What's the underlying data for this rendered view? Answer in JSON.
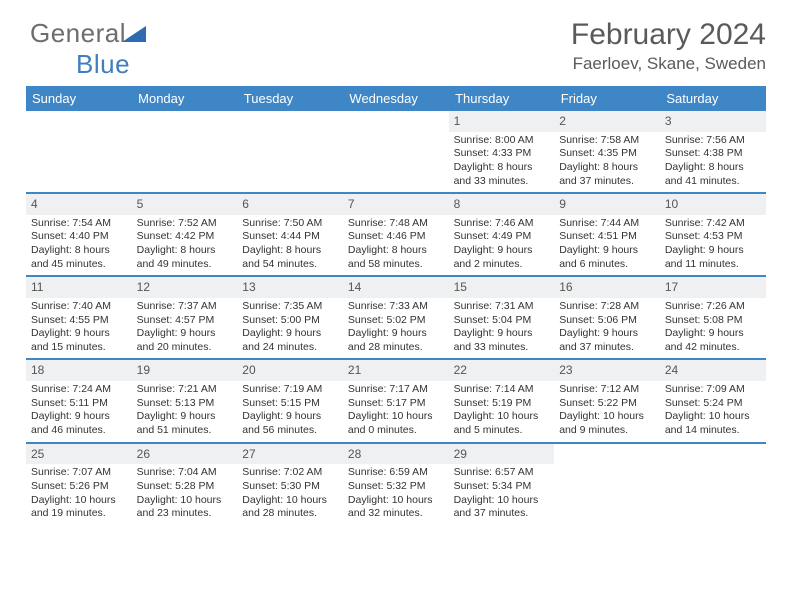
{
  "logo": {
    "part1": "General",
    "part2": "Blue"
  },
  "title": "February 2024",
  "subtitle": "Faerloev, Skane, Sweden",
  "colors": {
    "header_bg": "#3f86c7",
    "header_text": "#ffffff",
    "daynum_bg": "#eef0f1",
    "rule": "#3f86c7",
    "text": "#333333",
    "logo_grey": "#6d6d6d",
    "logo_blue": "#3f7fbf"
  },
  "font_sizes": {
    "title": 30,
    "subtitle": 17,
    "header": 13,
    "daynum": 12,
    "body": 10.5
  },
  "days_of_week": [
    "Sunday",
    "Monday",
    "Tuesday",
    "Wednesday",
    "Thursday",
    "Friday",
    "Saturday"
  ],
  "weeks": [
    [
      null,
      null,
      null,
      null,
      {
        "n": "1",
        "sr": "8:00 AM",
        "ss": "4:33 PM",
        "dl": "8 hours and 33 minutes."
      },
      {
        "n": "2",
        "sr": "7:58 AM",
        "ss": "4:35 PM",
        "dl": "8 hours and 37 minutes."
      },
      {
        "n": "3",
        "sr": "7:56 AM",
        "ss": "4:38 PM",
        "dl": "8 hours and 41 minutes."
      }
    ],
    [
      {
        "n": "4",
        "sr": "7:54 AM",
        "ss": "4:40 PM",
        "dl": "8 hours and 45 minutes."
      },
      {
        "n": "5",
        "sr": "7:52 AM",
        "ss": "4:42 PM",
        "dl": "8 hours and 49 minutes."
      },
      {
        "n": "6",
        "sr": "7:50 AM",
        "ss": "4:44 PM",
        "dl": "8 hours and 54 minutes."
      },
      {
        "n": "7",
        "sr": "7:48 AM",
        "ss": "4:46 PM",
        "dl": "8 hours and 58 minutes."
      },
      {
        "n": "8",
        "sr": "7:46 AM",
        "ss": "4:49 PM",
        "dl": "9 hours and 2 minutes."
      },
      {
        "n": "9",
        "sr": "7:44 AM",
        "ss": "4:51 PM",
        "dl": "9 hours and 6 minutes."
      },
      {
        "n": "10",
        "sr": "7:42 AM",
        "ss": "4:53 PM",
        "dl": "9 hours and 11 minutes."
      }
    ],
    [
      {
        "n": "11",
        "sr": "7:40 AM",
        "ss": "4:55 PM",
        "dl": "9 hours and 15 minutes."
      },
      {
        "n": "12",
        "sr": "7:37 AM",
        "ss": "4:57 PM",
        "dl": "9 hours and 20 minutes."
      },
      {
        "n": "13",
        "sr": "7:35 AM",
        "ss": "5:00 PM",
        "dl": "9 hours and 24 minutes."
      },
      {
        "n": "14",
        "sr": "7:33 AM",
        "ss": "5:02 PM",
        "dl": "9 hours and 28 minutes."
      },
      {
        "n": "15",
        "sr": "7:31 AM",
        "ss": "5:04 PM",
        "dl": "9 hours and 33 minutes."
      },
      {
        "n": "16",
        "sr": "7:28 AM",
        "ss": "5:06 PM",
        "dl": "9 hours and 37 minutes."
      },
      {
        "n": "17",
        "sr": "7:26 AM",
        "ss": "5:08 PM",
        "dl": "9 hours and 42 minutes."
      }
    ],
    [
      {
        "n": "18",
        "sr": "7:24 AM",
        "ss": "5:11 PM",
        "dl": "9 hours and 46 minutes."
      },
      {
        "n": "19",
        "sr": "7:21 AM",
        "ss": "5:13 PM",
        "dl": "9 hours and 51 minutes."
      },
      {
        "n": "20",
        "sr": "7:19 AM",
        "ss": "5:15 PM",
        "dl": "9 hours and 56 minutes."
      },
      {
        "n": "21",
        "sr": "7:17 AM",
        "ss": "5:17 PM",
        "dl": "10 hours and 0 minutes."
      },
      {
        "n": "22",
        "sr": "7:14 AM",
        "ss": "5:19 PM",
        "dl": "10 hours and 5 minutes."
      },
      {
        "n": "23",
        "sr": "7:12 AM",
        "ss": "5:22 PM",
        "dl": "10 hours and 9 minutes."
      },
      {
        "n": "24",
        "sr": "7:09 AM",
        "ss": "5:24 PM",
        "dl": "10 hours and 14 minutes."
      }
    ],
    [
      {
        "n": "25",
        "sr": "7:07 AM",
        "ss": "5:26 PM",
        "dl": "10 hours and 19 minutes."
      },
      {
        "n": "26",
        "sr": "7:04 AM",
        "ss": "5:28 PM",
        "dl": "10 hours and 23 minutes."
      },
      {
        "n": "27",
        "sr": "7:02 AM",
        "ss": "5:30 PM",
        "dl": "10 hours and 28 minutes."
      },
      {
        "n": "28",
        "sr": "6:59 AM",
        "ss": "5:32 PM",
        "dl": "10 hours and 32 minutes."
      },
      {
        "n": "29",
        "sr": "6:57 AM",
        "ss": "5:34 PM",
        "dl": "10 hours and 37 minutes."
      },
      null,
      null
    ]
  ],
  "labels": {
    "sunrise": "Sunrise:",
    "sunset": "Sunset:",
    "daylight": "Daylight:"
  }
}
